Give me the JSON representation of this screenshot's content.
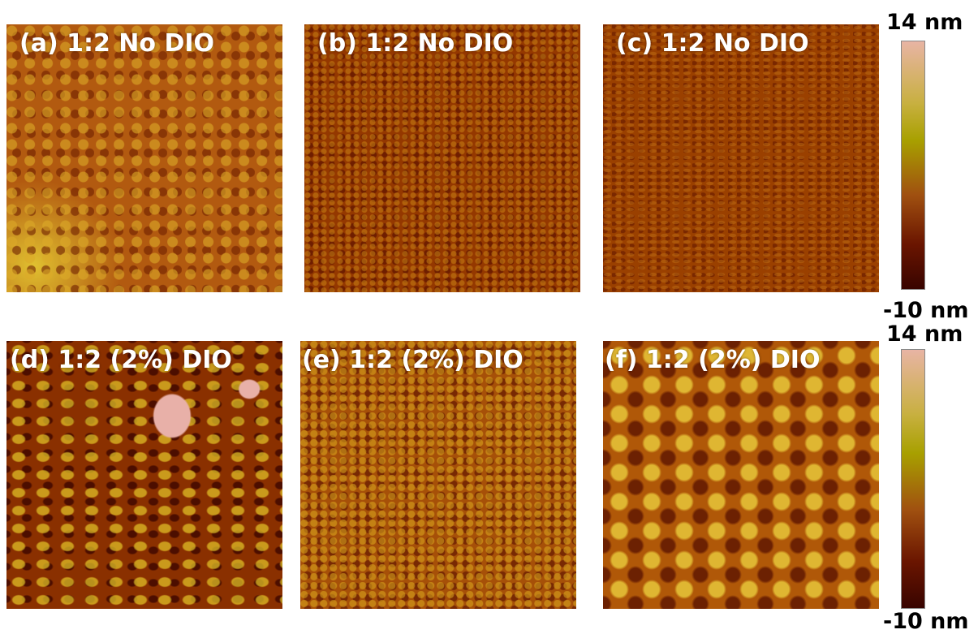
{
  "panels": [
    {
      "label": "(a) 1:2 No DIO"
    },
    {
      "label": "(b) 1:2 No DIO"
    },
    {
      "label": "(c) 1:2 No DIO"
    },
    {
      "label": "(d) 1:2 (2%) DIO"
    },
    {
      "label": "(e) 1:2 (2%) DIO"
    },
    {
      "label": "(f) 1:2 (2%) DIO"
    }
  ],
  "colorbars": [
    {
      "max_label": "14 nm",
      "min_label": "-10 nm"
    },
    {
      "max_label": "14 nm",
      "min_label": "-10 nm"
    }
  ]
}
